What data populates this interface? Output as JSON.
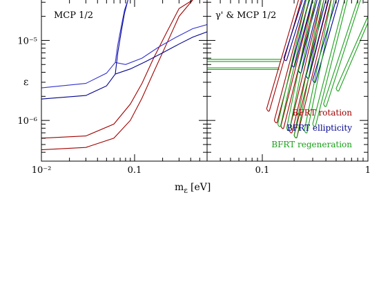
{
  "colors": {
    "rotation": "#a00000",
    "ellipticity": "#000090",
    "ellipticity_light": "#3030d0",
    "regeneration": "#18a018",
    "axes": "#000000"
  },
  "axes_labels": {
    "ylabel": "ε",
    "xlabel": "m",
    "xlabel_sub": "ε",
    "xlabel_unit": "[eV]"
  },
  "chart_data": [
    {
      "type": "line",
      "title": "MCP 1/2",
      "xscale": "log",
      "yscale": "log",
      "xlim": [
        0.01,
        0.6
      ],
      "ylim": [
        3.1e-07,
        3.2e-05
      ],
      "x_tick_labels": [
        "10⁻²",
        "0.1"
      ],
      "x_ticks": [
        0.01,
        0.1
      ],
      "y_tick_labels": [
        "10⁻⁵",
        "10⁻⁶"
      ],
      "y_ticks": [
        1e-05,
        1e-06
      ],
      "series": [
        {
          "color_key": "rotation",
          "x": [
            0.01,
            0.03,
            0.06,
            0.09,
            0.12,
            0.16,
            0.22,
            0.3,
            0.42
          ],
          "y": [
            4.3e-07,
            4.6e-07,
            6e-07,
            1e-06,
            1.9e-06,
            4e-06,
            9e-06,
            2e-05,
            3.2e-05
          ]
        },
        {
          "color_key": "rotation",
          "x": [
            0.01,
            0.03,
            0.06,
            0.09,
            0.12,
            0.16,
            0.22,
            0.3,
            0.42
          ],
          "y": [
            6e-07,
            6.4e-07,
            9e-07,
            1.6e-06,
            2.9e-06,
            6e-06,
            1.25e-05,
            2.5e-05,
            3.2e-05
          ]
        },
        {
          "color_key": "ellipticity",
          "x": [
            0.01,
            0.03,
            0.05,
            0.062,
            0.09,
            0.13,
            0.2,
            0.3,
            0.42,
            0.6
          ],
          "y": [
            1.85e-06,
            2.05e-06,
            2.7e-06,
            3.8e-06,
            4.4e-06,
            5.4e-06,
            7e-06,
            9e-06,
            1.1e-05,
            1.28e-05
          ]
        },
        {
          "color_key": "ellipticity_light",
          "x": [
            0.01,
            0.03,
            0.05,
            0.062,
            0.08,
            0.12,
            0.18,
            0.28,
            0.42,
            0.6
          ],
          "y": [
            2.55e-06,
            2.9e-06,
            3.9e-06,
            5.3e-06,
            5e-06,
            6e-06,
            8.2e-06,
            1.1e-05,
            1.4e-05,
            1.58e-05
          ]
        },
        {
          "color_key": "ellipticity",
          "x": [
            0.062,
            0.066,
            0.072,
            0.078,
            0.085
          ],
          "y": [
            3.8e-06,
            7e-06,
            1.3e-05,
            2.2e-05,
            3.2e-05
          ]
        },
        {
          "color_key": "ellipticity_light",
          "x": [
            0.062,
            0.066,
            0.072,
            0.078,
            0.085
          ],
          "y": [
            5.3e-06,
            8.8e-06,
            1.5e-05,
            2.4e-05,
            3.2e-05
          ]
        }
      ]
    },
    {
      "type": "line",
      "title": "γ' & MCP 1/2",
      "xscale": "log",
      "yscale": "log",
      "xlim": [
        0.03,
        1
      ],
      "ylim": [
        3.1e-07,
        3.2e-05
      ],
      "x_tick_labels": [
        "0.1",
        "1"
      ],
      "x_ticks": [
        0.1,
        1
      ],
      "legend": {
        "placement": "bottom-right",
        "entries": [
          {
            "label": "BFRT rotation",
            "color_key": "rotation"
          },
          {
            "label": "BFRT ellipticity",
            "color_key": "ellipticity"
          },
          {
            "label": "BFRT regeneration",
            "color_key": "regeneration"
          }
        ]
      },
      "series": [
        {
          "color_key": "regeneration",
          "x": [
            0.03,
            0.15
          ],
          "y": [
            5.8e-06,
            5.8e-06
          ]
        },
        {
          "color_key": "regeneration",
          "x": [
            0.03,
            0.15
          ],
          "y": [
            5.45e-06,
            5.45e-06
          ]
        },
        {
          "color_key": "regeneration",
          "x": [
            0.03,
            0.145
          ],
          "y": [
            4.55e-06,
            4.55e-06
          ]
        },
        {
          "color_key": "regeneration",
          "x": [
            0.03,
            0.145
          ],
          "y": [
            4.35e-06,
            4.35e-06
          ]
        }
      ],
      "contour_bands": [
        {
          "color_key": "rotation",
          "x_start": [
            0.11,
            0.13,
            0.15,
            0.18,
            0.2
          ],
          "y_start": [
            1.4e-06,
            1e-06,
            8.5e-07,
            7.5e-07,
            6.5e-07
          ],
          "x_end": [
            0.22,
            0.26,
            0.3,
            0.36,
            0.42
          ],
          "y_end": [
            3.2e-05,
            3.2e-05,
            3.2e-05,
            3.2e-05,
            3.2e-05
          ]
        },
        {
          "color_key": "ellipticity",
          "x_start": [
            0.16,
            0.19,
            0.22,
            0.26,
            0.3
          ],
          "y_start": [
            6e-06,
            5e-06,
            4.2e-06,
            3.6e-06,
            3.2e-06
          ],
          "x_end": [
            0.24,
            0.28,
            0.33,
            0.4,
            0.5
          ],
          "y_end": [
            3.2e-05,
            3.2e-05,
            3.2e-05,
            3.2e-05,
            3.2e-05
          ]
        },
        {
          "color_key": "regeneration",
          "x_start": [
            0.14,
            0.17,
            0.2,
            0.25,
            0.3,
            0.38,
            0.5
          ],
          "y_start": [
            9e-07,
            8e-07,
            6.5e-07,
            7.5e-07,
            9e-07,
            1.6e-06,
            2.5e-06
          ],
          "x_end": [
            0.26,
            0.3,
            0.36,
            0.45,
            0.6,
            0.8,
            1.0
          ],
          "y_end": [
            3.2e-05,
            3.2e-05,
            3.2e-05,
            3.2e-05,
            3.2e-05,
            3.2e-05,
            2e-05
          ]
        }
      ]
    }
  ]
}
